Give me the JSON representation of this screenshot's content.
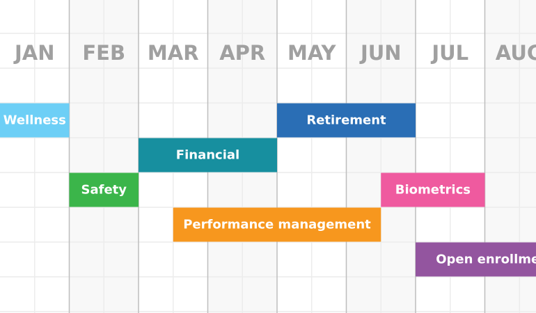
{
  "chart_data": {
    "type": "gantt",
    "categories": [
      "JAN",
      "FEB",
      "MAR",
      "APR",
      "MAY",
      "JUN",
      "JUL",
      "AUG"
    ],
    "tasks": [
      {
        "name": "Wellness",
        "start": 0,
        "end": 1,
        "row": 0,
        "color": "#6dcff6"
      },
      {
        "name": "Retirement",
        "start": 4,
        "end": 6,
        "row": 0,
        "color": "#2a6eb5"
      },
      {
        "name": "Financial",
        "start": 2,
        "end": 4,
        "row": 1,
        "color": "#178f9f"
      },
      {
        "name": "Safety",
        "start": 1,
        "end": 2,
        "row": 2,
        "color": "#3bb54a"
      },
      {
        "name": "Biometrics",
        "start": 5.5,
        "end": 7,
        "row": 2,
        "color": "#ef5a9f"
      },
      {
        "name": "Performance management",
        "start": 2.5,
        "end": 5.5,
        "row": 3,
        "color": "#f7971e"
      },
      {
        "name": "Open enrollment",
        "start": 6,
        "end": 8.3,
        "row": 4,
        "color": "#93559f"
      }
    ]
  }
}
